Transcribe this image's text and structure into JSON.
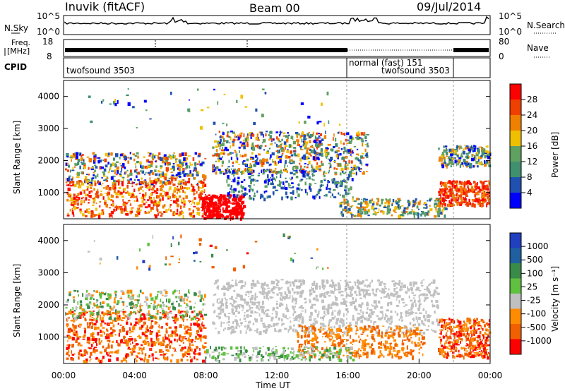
{
  "header": {
    "station": "Inuvik (fitACF)",
    "beam": "Beam 00",
    "date": "09/Jul/2014"
  },
  "noise_panel": {
    "left_label": "N.Sky",
    "right_label": "N.Search",
    "left_ticks": [
      "10^5",
      "10^0"
    ],
    "right_ticks": [
      "10^5",
      "10^0"
    ]
  },
  "freq_panel": {
    "left_label_1": "Freq.",
    "left_label_2": "[MHz]",
    "right_label": "Nave",
    "left_ticks": [
      "18",
      "8"
    ],
    "right_ticks": [
      "80",
      "0"
    ]
  },
  "cpid_panel": {
    "label": "CPID",
    "segments": [
      {
        "text": "twofsound 3503"
      },
      {
        "text": "normal (fast) 151"
      },
      {
        "text": "twofsound 3503"
      }
    ]
  },
  "power_panel": {
    "ylabel": "Slant Range [km]",
    "cbar_label": "Power [dB]",
    "cbar_ticks": [
      "28",
      "24",
      "20",
      "16",
      "12",
      "8",
      "4"
    ]
  },
  "velocity_panel": {
    "ylabel": "Slant Range [km]",
    "cbar_label": "Velocity [m s⁻¹]",
    "cbar_ticks": [
      "1000",
      "500",
      "100",
      "25",
      "-25",
      "-100",
      "-500",
      "-1000"
    ]
  },
  "xaxis": {
    "label": "Time UT",
    "ticks": [
      "00:00",
      "04:00",
      "08:00",
      "12:00",
      "16:00",
      "20:00",
      "00:00"
    ]
  },
  "colors": {
    "power_scale": [
      "#ff0000",
      "#f04000",
      "#f08000",
      "#f0c000",
      "#60a060",
      "#409070",
      "#2050b0",
      "#0000ff"
    ],
    "velocity_scale": [
      "#2040c0",
      "#2060a0",
      "#3a8a4a",
      "#60c040",
      "#c0c0c0",
      "#ff8c00",
      "#f06000",
      "#ff0000"
    ]
  },
  "chart_data": [
    {
      "type": "heatmap",
      "title": "Power",
      "ylabel": "Slant Range [km]",
      "xlabel": "Time UT",
      "ylim": [
        180,
        4500
      ],
      "x_ticks": [
        "00:00",
        "04:00",
        "08:00",
        "12:00",
        "16:00",
        "20:00",
        "00:00"
      ],
      "y_ticks": [
        1000,
        2000,
        3000,
        4000
      ],
      "colorbar": {
        "label": "Power [dB]",
        "ticks": [
          4,
          8,
          12,
          16,
          20,
          24,
          28
        ]
      }
    },
    {
      "type": "heatmap",
      "title": "Velocity",
      "ylabel": "Slant Range [km]",
      "xlabel": "Time UT",
      "ylim": [
        180,
        4500
      ],
      "x_ticks": [
        "00:00",
        "04:00",
        "08:00",
        "12:00",
        "16:00",
        "20:00",
        "00:00"
      ],
      "y_ticks": [
        1000,
        2000,
        3000,
        4000
      ],
      "colorbar": {
        "label": "Velocity [m s⁻¹]",
        "ticks": [
          1000,
          500,
          100,
          25,
          -25,
          -100,
          -500,
          -1000
        ]
      }
    }
  ]
}
